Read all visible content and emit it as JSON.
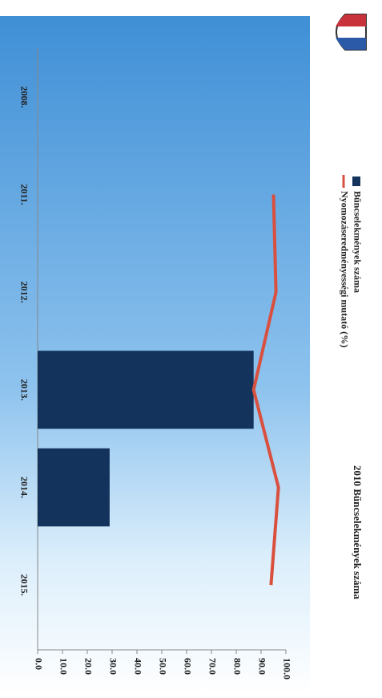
{
  "chart_data": {
    "type": "bar_line",
    "title": "2010 Bűncselekmények száma",
    "categories": [
      "2008.",
      "2011.",
      "2012.",
      "2013.",
      "2014.",
      "2015."
    ],
    "series": [
      {
        "name": "Bűncselekmények száma",
        "type": "bar",
        "color": "#14335c",
        "values": [
          null,
          null,
          null,
          87,
          29,
          null
        ]
      },
      {
        "name": "Nyomozáseredményességi mutató (%)",
        "type": "line",
        "color": "#d9503f",
        "values": [
          null,
          95,
          96,
          87,
          97,
          94
        ]
      }
    ],
    "ylim": [
      0,
      100
    ],
    "yticks": [
      {
        "value": 0,
        "label": "0.0"
      },
      {
        "value": 10,
        "label": "10.0"
      },
      {
        "value": 20,
        "label": "20.0"
      },
      {
        "value": 30,
        "label": "30.0"
      },
      {
        "value": 40,
        "label": "40.0"
      },
      {
        "value": 50,
        "label": "50.0"
      },
      {
        "value": 60,
        "label": "60.0"
      },
      {
        "value": 70,
        "label": "70.0"
      },
      {
        "value": 80,
        "label": "80.0"
      },
      {
        "value": 90,
        "label": "90.0"
      },
      {
        "value": 100,
        "label": "100.0"
      }
    ],
    "grid": false
  }
}
